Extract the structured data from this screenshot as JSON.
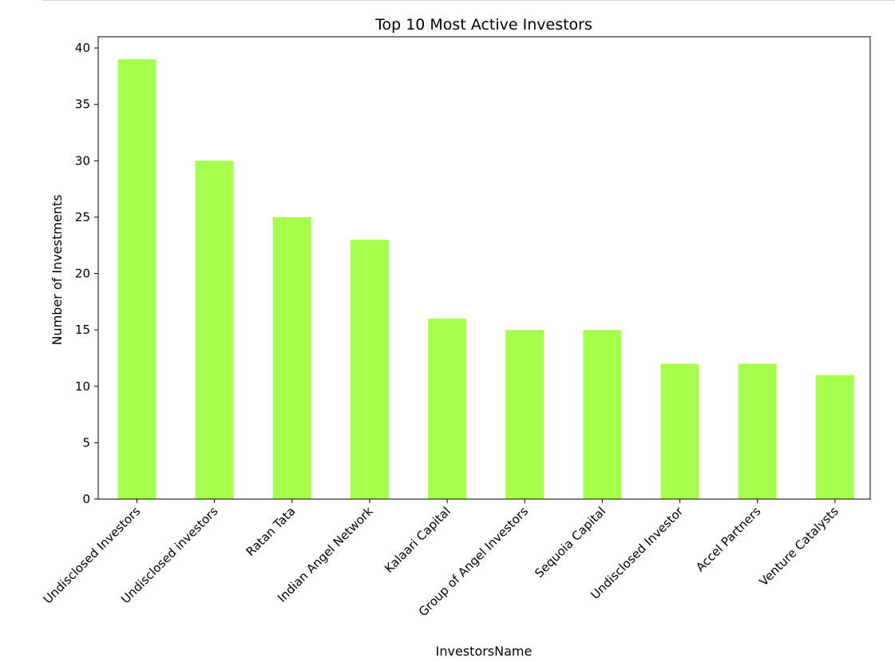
{
  "chart_data": {
    "type": "bar",
    "title": "Top 10 Most Active Investors",
    "xlabel": "InvestorsName",
    "ylabel": "Number of Investments",
    "categories": [
      "Undisclosed Investors",
      "Undisclosed investors",
      "Ratan Tata",
      "Indian Angel Network",
      "Kalaari Capital",
      "Group of Angel Investors",
      "Sequoia Capital",
      "Undisclosed Investor",
      "Accel Partners",
      "Venture Catalysts"
    ],
    "values": [
      39,
      30,
      25,
      23,
      16,
      15,
      15,
      12,
      12,
      11
    ],
    "ylim": [
      0,
      41.0
    ],
    "yticks": [
      0,
      5,
      10,
      15,
      20,
      25,
      30,
      35,
      40
    ],
    "bar_color": "#a6ff4d",
    "grid": false,
    "legend": "none"
  }
}
